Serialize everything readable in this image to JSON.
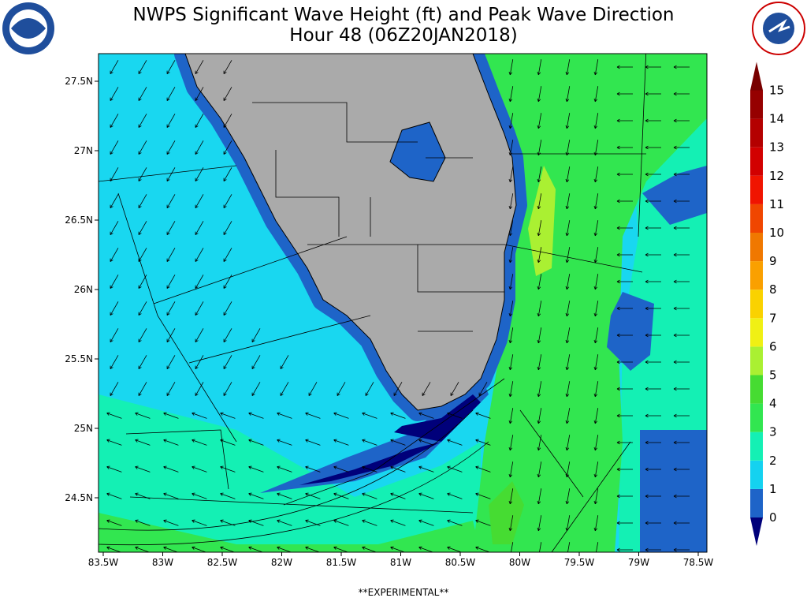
{
  "header": {
    "title_line1": "NWPS Significant Wave Height (ft) and Peak Wave Direction",
    "title_line2": "Hour 48 (06Z20JAN2018)"
  },
  "map": {
    "lat_labels": [
      "27.5N",
      "27N",
      "26.5N",
      "26N",
      "25.5N",
      "25N",
      "24.5N"
    ],
    "lon_labels": [
      "83.5W",
      "83W",
      "82.5W",
      "82W",
      "81.5W",
      "81W",
      "80.5W",
      "80W",
      "79.5W",
      "79W",
      "78.5W"
    ]
  },
  "colorbar": {
    "levels": [
      0,
      1,
      2,
      3,
      4,
      5,
      6,
      7,
      8,
      9,
      10,
      11,
      12,
      13,
      14,
      15
    ],
    "colors": [
      "#00007a",
      "#1e64c8",
      "#14d2f0",
      "#14f0b4",
      "#32e650",
      "#46dc32",
      "#aaf032",
      "#f0f014",
      "#fad200",
      "#faa000",
      "#f07800",
      "#f04600",
      "#f01400",
      "#d20000",
      "#b40000",
      "#960000",
      "#780000"
    ]
  },
  "footer": "**EXPERIMENTAL**"
}
